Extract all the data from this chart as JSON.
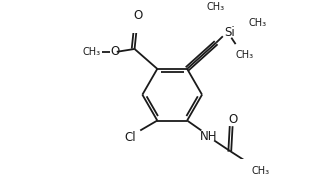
{
  "background": "#ffffff",
  "line_color": "#1a1a1a",
  "line_width": 1.3,
  "figsize": [
    3.16,
    1.77
  ],
  "dpi": 100,
  "xlim": [
    0,
    316
  ],
  "ylim": [
    0,
    177
  ]
}
